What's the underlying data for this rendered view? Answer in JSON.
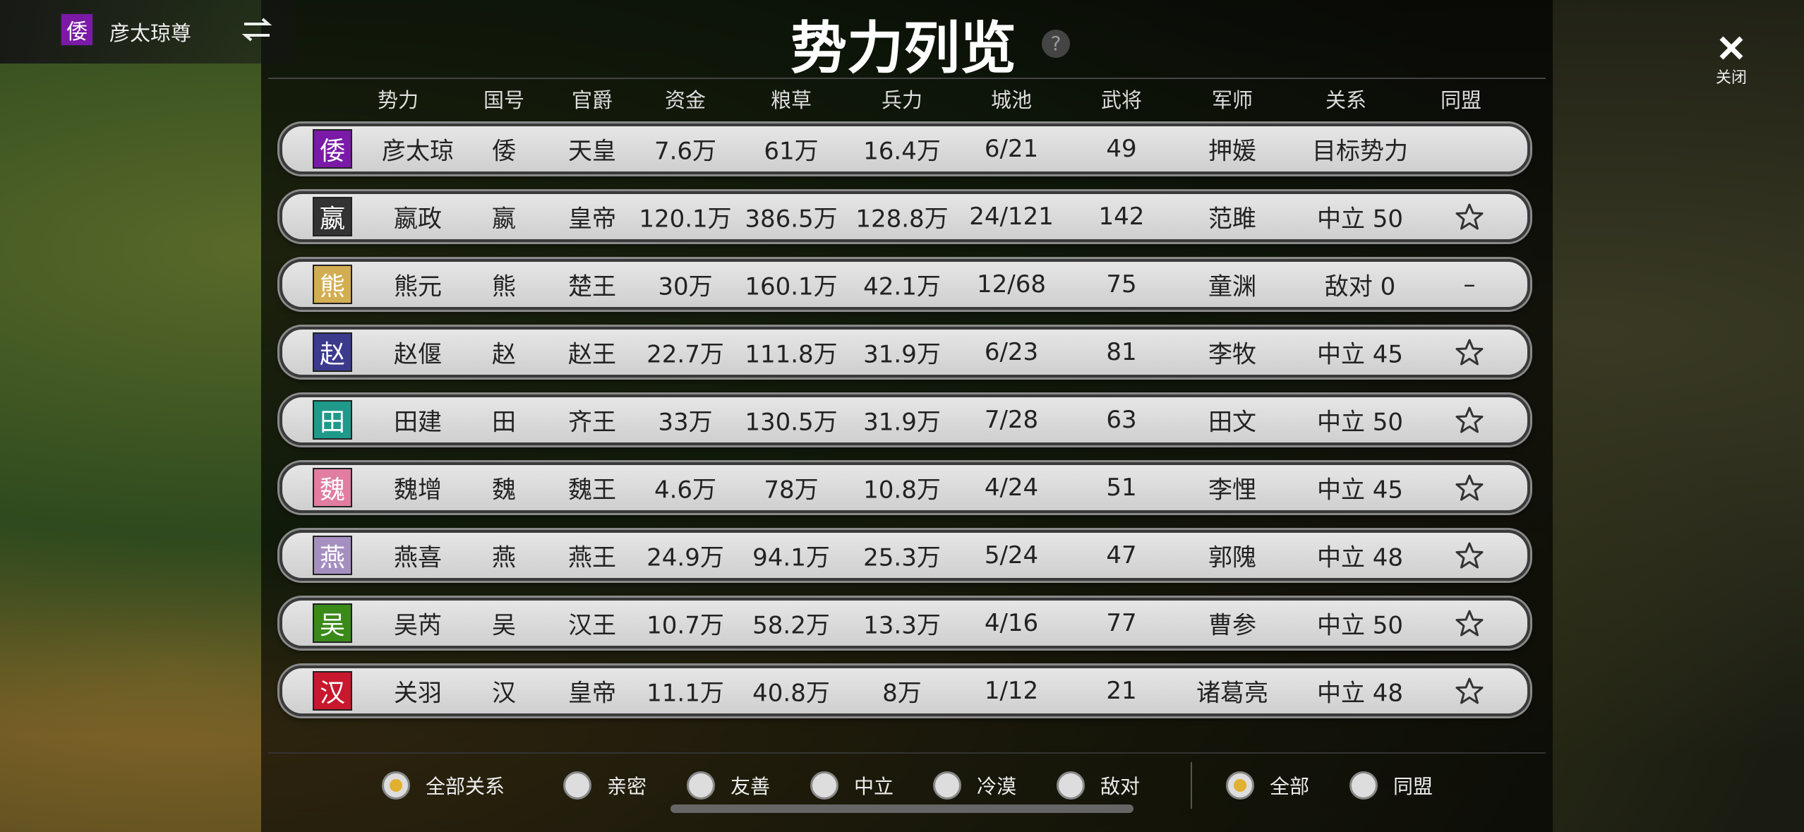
{
  "header": {
    "player_badge": "倭",
    "player_name": "彦太琼尊",
    "title": "势力列览",
    "help": "?",
    "close": "关闭"
  },
  "table": {
    "columns": [
      "势力",
      "国号",
      "官爵",
      "资金",
      "粮草",
      "兵力",
      "城池",
      "武将",
      "军师",
      "关系",
      "同盟"
    ],
    "rows": [
      {
        "badge": "倭",
        "badge_color": "#7a1aa6",
        "leader": "彦太琼",
        "state": "倭",
        "rank": "天皇",
        "funds": "7.6万",
        "grain": "61万",
        "troops": "16.4万",
        "cities": "6/21",
        "generals": "49",
        "strategist": "押媛",
        "relation": "目标势力"
      },
      {
        "badge": "嬴",
        "badge_color": "#333333",
        "leader": "嬴政",
        "state": "嬴",
        "rank": "皇帝",
        "funds": "120.1万",
        "grain": "386.5万",
        "troops": "128.8万",
        "cities": "24/121",
        "generals": "142",
        "strategist": "范雎",
        "relation": "中立 50",
        "starred": true
      },
      {
        "badge": "熊",
        "badge_color": "#d2ad52",
        "leader": "熊元",
        "state": "熊",
        "rank": "楚王",
        "funds": "30万",
        "grain": "160.1万",
        "troops": "42.1万",
        "cities": "12/68",
        "generals": "75",
        "strategist": "童渊",
        "relation": "敌对 0",
        "alliance": "–"
      },
      {
        "badge": "赵",
        "badge_color": "#3b3a8c",
        "leader": "赵偃",
        "state": "赵",
        "rank": "赵王",
        "funds": "22.7万",
        "grain": "111.8万",
        "troops": "31.9万",
        "cities": "6/23",
        "generals": "81",
        "strategist": "李牧",
        "relation": "中立 45",
        "starred": true
      },
      {
        "badge": "田",
        "badge_color": "#1f9a8a",
        "leader": "田建",
        "state": "田",
        "rank": "齐王",
        "funds": "33万",
        "grain": "130.5万",
        "troops": "31.9万",
        "cities": "7/28",
        "generals": "63",
        "strategist": "田文",
        "relation": "中立 50",
        "starred": true
      },
      {
        "badge": "魏",
        "badge_color": "#e07da0",
        "leader": "魏增",
        "state": "魏",
        "rank": "魏王",
        "funds": "4.6万",
        "grain": "78万",
        "troops": "10.8万",
        "cities": "4/24",
        "generals": "51",
        "strategist": "李悝",
        "relation": "中立 45",
        "starred": true
      },
      {
        "badge": "燕",
        "badge_color": "#a58fc0",
        "leader": "燕喜",
        "state": "燕",
        "rank": "燕王",
        "funds": "24.9万",
        "grain": "94.1万",
        "troops": "25.3万",
        "cities": "5/24",
        "generals": "47",
        "strategist": "郭隗",
        "relation": "中立 48",
        "starred": true
      },
      {
        "badge": "吴",
        "badge_color": "#3a8a1a",
        "leader": "吴芮",
        "state": "吴",
        "rank": "汉王",
        "funds": "10.7万",
        "grain": "58.2万",
        "troops": "13.3万",
        "cities": "4/16",
        "generals": "77",
        "strategist": "曹参",
        "relation": "中立 50",
        "starred": true
      },
      {
        "badge": "汉",
        "badge_color": "#c8182e",
        "leader": "关羽",
        "state": "汉",
        "rank": "皇帝",
        "funds": "11.1万",
        "grain": "40.8万",
        "troops": "8万",
        "cities": "1/12",
        "generals": "21",
        "strategist": "诸葛亮",
        "relation": "中立 48",
        "starred": true
      }
    ]
  },
  "relation_filters": [
    {
      "label": "全部关系",
      "selected": true
    },
    {
      "label": "亲密"
    },
    {
      "label": "友善"
    },
    {
      "label": "中立"
    },
    {
      "label": "冷漠"
    },
    {
      "label": "敌对"
    }
  ],
  "scope_filters": [
    {
      "label": "全部",
      "selected": true
    },
    {
      "label": "同盟"
    }
  ]
}
